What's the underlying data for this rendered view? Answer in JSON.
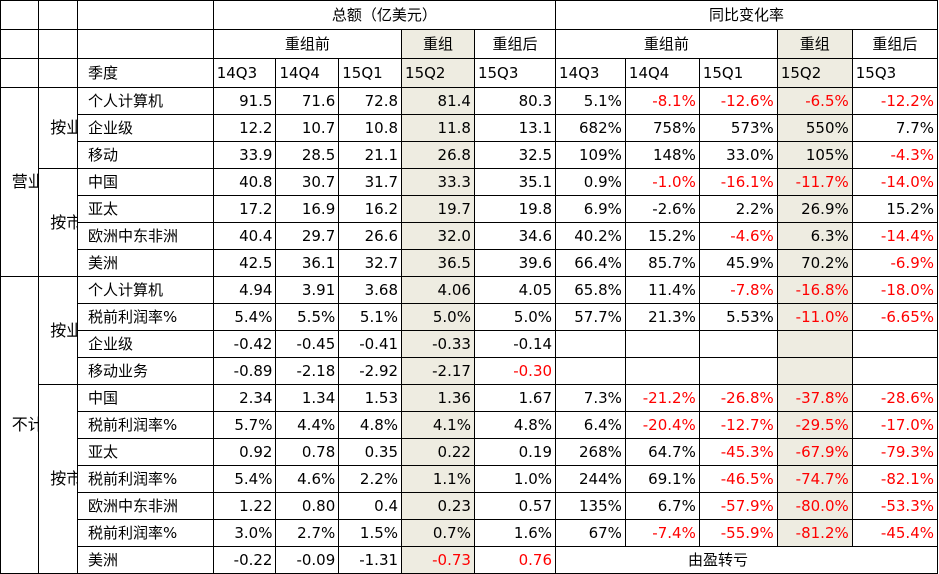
{
  "header": {
    "total_group": "总额（亿美元）",
    "yoy_group": "同比变化率",
    "pre_reorg": "重组前",
    "reorg": "重组",
    "post_reorg": "重组后",
    "season_label": "季度",
    "quarters_total": [
      "14Q3",
      "14Q4",
      "15Q1",
      "15Q2",
      "15Q3"
    ],
    "quarters_yoy": [
      "14Q3",
      "14Q4",
      "15Q1",
      "15Q2",
      "15Q3"
    ]
  },
  "section_labels": {
    "revenue": "营业收入",
    "profit": "不计重组费用的税前利润",
    "by_business": "按业务",
    "by_market": "按市场"
  },
  "rows": [
    {
      "label": "个人计算机",
      "total": [
        "91.5",
        "71.6",
        "72.8",
        "81.4",
        "80.3"
      ],
      "yoy": [
        "5.1%",
        "-8.1%",
        "-12.6%",
        "-6.5%",
        "-12.2%"
      ],
      "total_red": [
        false,
        false,
        false,
        false,
        false
      ],
      "yoy_red": [
        false,
        true,
        true,
        true,
        true
      ]
    },
    {
      "label": "企业级",
      "total": [
        "12.2",
        "10.7",
        "10.8",
        "11.8",
        "13.1"
      ],
      "yoy": [
        "682%",
        "758%",
        "573%",
        "550%",
        "7.7%"
      ],
      "total_red": [
        false,
        false,
        false,
        false,
        false
      ],
      "yoy_red": [
        false,
        false,
        false,
        false,
        false
      ]
    },
    {
      "label": "移动",
      "total": [
        "33.9",
        "28.5",
        "21.1",
        "26.8",
        "32.5"
      ],
      "yoy": [
        "109%",
        "148%",
        "33.0%",
        "105%",
        "-4.3%"
      ],
      "total_red": [
        false,
        false,
        false,
        false,
        false
      ],
      "yoy_red": [
        false,
        false,
        false,
        false,
        true
      ]
    },
    {
      "label": "中国",
      "total": [
        "40.8",
        "30.7",
        "31.7",
        "33.3",
        "35.1"
      ],
      "yoy": [
        "0.9%",
        "-1.0%",
        "-16.1%",
        "-11.7%",
        "-14.0%"
      ],
      "total_red": [
        false,
        false,
        false,
        false,
        false
      ],
      "yoy_red": [
        false,
        true,
        true,
        true,
        true
      ]
    },
    {
      "label": "亚太",
      "total": [
        "17.2",
        "16.9",
        "16.2",
        "19.7",
        "19.8"
      ],
      "yoy": [
        "6.9%",
        "-2.6%",
        "2.2%",
        "26.9%",
        "15.2%"
      ],
      "total_red": [
        false,
        false,
        false,
        false,
        false
      ],
      "yoy_red": [
        false,
        false,
        false,
        false,
        false
      ]
    },
    {
      "label": "欧洲中东非洲",
      "total": [
        "40.4",
        "29.7",
        "26.6",
        "32.0",
        "34.6"
      ],
      "yoy": [
        "40.2%",
        "15.2%",
        "-4.6%",
        "6.3%",
        "-14.4%"
      ],
      "total_red": [
        false,
        false,
        false,
        false,
        false
      ],
      "yoy_red": [
        false,
        false,
        true,
        false,
        true
      ]
    },
    {
      "label": "美洲",
      "total": [
        "42.5",
        "36.1",
        "32.7",
        "36.5",
        "39.6"
      ],
      "yoy": [
        "66.4%",
        "85.7%",
        "45.9%",
        "70.2%",
        "-6.9%"
      ],
      "total_red": [
        false,
        false,
        false,
        false,
        false
      ],
      "yoy_red": [
        false,
        false,
        false,
        false,
        true
      ]
    },
    {
      "label": "个人计算机",
      "total": [
        "4.94",
        "3.91",
        "3.68",
        "4.06",
        "4.05"
      ],
      "yoy": [
        "65.8%",
        "11.4%",
        "-7.8%",
        "-16.8%",
        "-18.0%"
      ],
      "total_red": [
        false,
        false,
        false,
        false,
        false
      ],
      "yoy_red": [
        false,
        false,
        true,
        true,
        true
      ]
    },
    {
      "label": "税前利润率%",
      "total": [
        "5.4%",
        "5.5%",
        "5.1%",
        "5.0%",
        "5.0%"
      ],
      "yoy": [
        "57.7%",
        "21.3%",
        "5.53%",
        "-11.0%",
        "-6.65%"
      ],
      "total_red": [
        false,
        false,
        false,
        false,
        false
      ],
      "yoy_red": [
        false,
        false,
        false,
        true,
        true
      ]
    },
    {
      "label": "企业级",
      "total": [
        "-0.42",
        "-0.45",
        "-0.41",
        "-0.33",
        "-0.14"
      ],
      "yoy": [
        "",
        "",
        "",
        "",
        ""
      ],
      "total_red": [
        false,
        false,
        false,
        false,
        false
      ],
      "yoy_red": [
        false,
        false,
        false,
        false,
        false
      ]
    },
    {
      "label": "移动业务",
      "total": [
        "-0.89",
        "-2.18",
        "-2.92",
        "-2.17",
        "-0.30"
      ],
      "yoy": [
        "",
        "",
        "",
        "",
        ""
      ],
      "total_red": [
        false,
        false,
        false,
        false,
        true
      ],
      "yoy_red": [
        false,
        false,
        false,
        false,
        false
      ]
    },
    {
      "label": "中国",
      "total": [
        "2.34",
        "1.34",
        "1.53",
        "1.36",
        "1.67"
      ],
      "yoy": [
        "7.3%",
        "-21.2%",
        "-26.8%",
        "-37.8%",
        "-28.6%"
      ],
      "total_red": [
        false,
        false,
        false,
        false,
        false
      ],
      "yoy_red": [
        false,
        true,
        true,
        true,
        true
      ]
    },
    {
      "label": "税前利润率%",
      "total": [
        "5.7%",
        "4.4%",
        "4.8%",
        "4.1%",
        "4.8%"
      ],
      "yoy": [
        "6.4%",
        "-20.4%",
        "-12.7%",
        "-29.5%",
        "-17.0%"
      ],
      "total_red": [
        false,
        false,
        false,
        false,
        false
      ],
      "yoy_red": [
        false,
        true,
        true,
        true,
        true
      ]
    },
    {
      "label": "亚太",
      "total": [
        "0.92",
        "0.78",
        "0.35",
        "0.22",
        "0.19"
      ],
      "yoy": [
        "268%",
        "64.7%",
        "-45.3%",
        "-67.9%",
        "-79.3%"
      ],
      "total_red": [
        false,
        false,
        false,
        false,
        false
      ],
      "yoy_red": [
        false,
        false,
        true,
        true,
        true
      ]
    },
    {
      "label": "税前利润率%",
      "total": [
        "5.4%",
        "4.6%",
        "2.2%",
        "1.1%",
        "1.0%"
      ],
      "yoy": [
        "244%",
        "69.1%",
        "-46.5%",
        "-74.7%",
        "-82.1%"
      ],
      "total_red": [
        false,
        false,
        false,
        false,
        false
      ],
      "yoy_red": [
        false,
        false,
        true,
        true,
        true
      ]
    },
    {
      "label": "欧洲中东非洲",
      "total": [
        "1.22",
        "0.80",
        "0.4",
        "0.23",
        "0.57"
      ],
      "yoy": [
        "135%",
        "6.7%",
        "-57.9%",
        "-80.0%",
        "-53.3%"
      ],
      "total_red": [
        false,
        false,
        false,
        false,
        false
      ],
      "yoy_red": [
        false,
        false,
        true,
        true,
        true
      ]
    },
    {
      "label": "税前利润率%",
      "total": [
        "3.0%",
        "2.7%",
        "1.5%",
        "0.7%",
        "1.6%"
      ],
      "yoy": [
        "67%",
        "-7.4%",
        "-55.9%",
        "-81.2%",
        "-45.4%"
      ],
      "total_red": [
        false,
        false,
        false,
        false,
        false
      ],
      "yoy_red": [
        false,
        true,
        true,
        true,
        true
      ]
    },
    {
      "label": "美洲",
      "total": [
        "-0.22",
        "-0.09",
        "-1.31",
        "-0.73",
        "0.76"
      ],
      "yoy": [
        "",
        "",
        "",
        "",
        ""
      ],
      "total_red": [
        false,
        false,
        false,
        true,
        true
      ],
      "yoy_red": [
        false,
        false,
        false,
        false,
        false
      ]
    }
  ],
  "americas_profit_note": "由盈转亏",
  "colors": {
    "highlight": "#eeece1",
    "negative": "#ff0000",
    "border": "#000000"
  }
}
